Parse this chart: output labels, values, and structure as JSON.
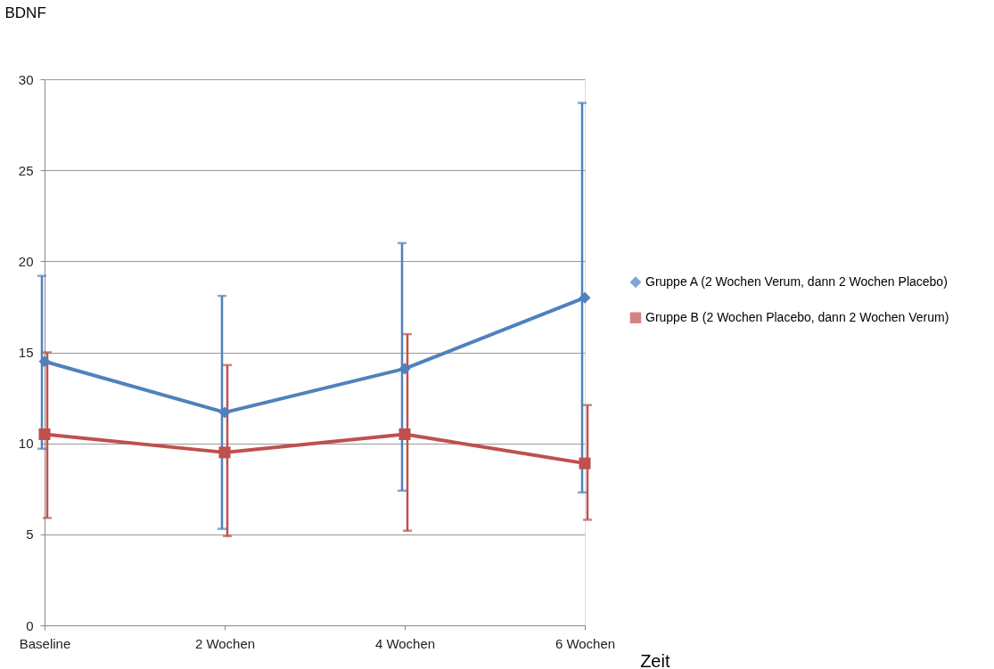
{
  "chart_data": {
    "type": "line",
    "ylabel": "BDNF",
    "xlabel": "Zeit",
    "categories": [
      "Baseline",
      "2 Wochen",
      "4 Wochen",
      "6 Wochen"
    ],
    "series": [
      {
        "name": "Gruppe A (2 Wochen Verum, dann 2 Wochen Placebo)",
        "color": "#4f81bd",
        "marker": "diamond",
        "values": [
          14.5,
          11.7,
          14.1,
          18.0
        ],
        "errors": [
          [
            9.7,
            19.2
          ],
          [
            5.3,
            18.1
          ],
          [
            7.4,
            21.0
          ],
          [
            7.3,
            28.7
          ]
        ]
      },
      {
        "name": "Gruppe B (2 Wochen Placebo, dann 2 Wochen Verum)",
        "color": "#c0504d",
        "marker": "square",
        "values": [
          10.5,
          9.5,
          10.5,
          8.9
        ],
        "errors": [
          [
            5.9,
            15.0
          ],
          [
            4.9,
            14.3
          ],
          [
            5.2,
            16.0
          ],
          [
            5.8,
            12.1
          ]
        ]
      }
    ],
    "ylim": [
      0,
      30
    ],
    "yticks": [
      0,
      5,
      10,
      15,
      20,
      25,
      30
    ],
    "grid": "y",
    "legend": "right",
    "line_style": "solid"
  }
}
